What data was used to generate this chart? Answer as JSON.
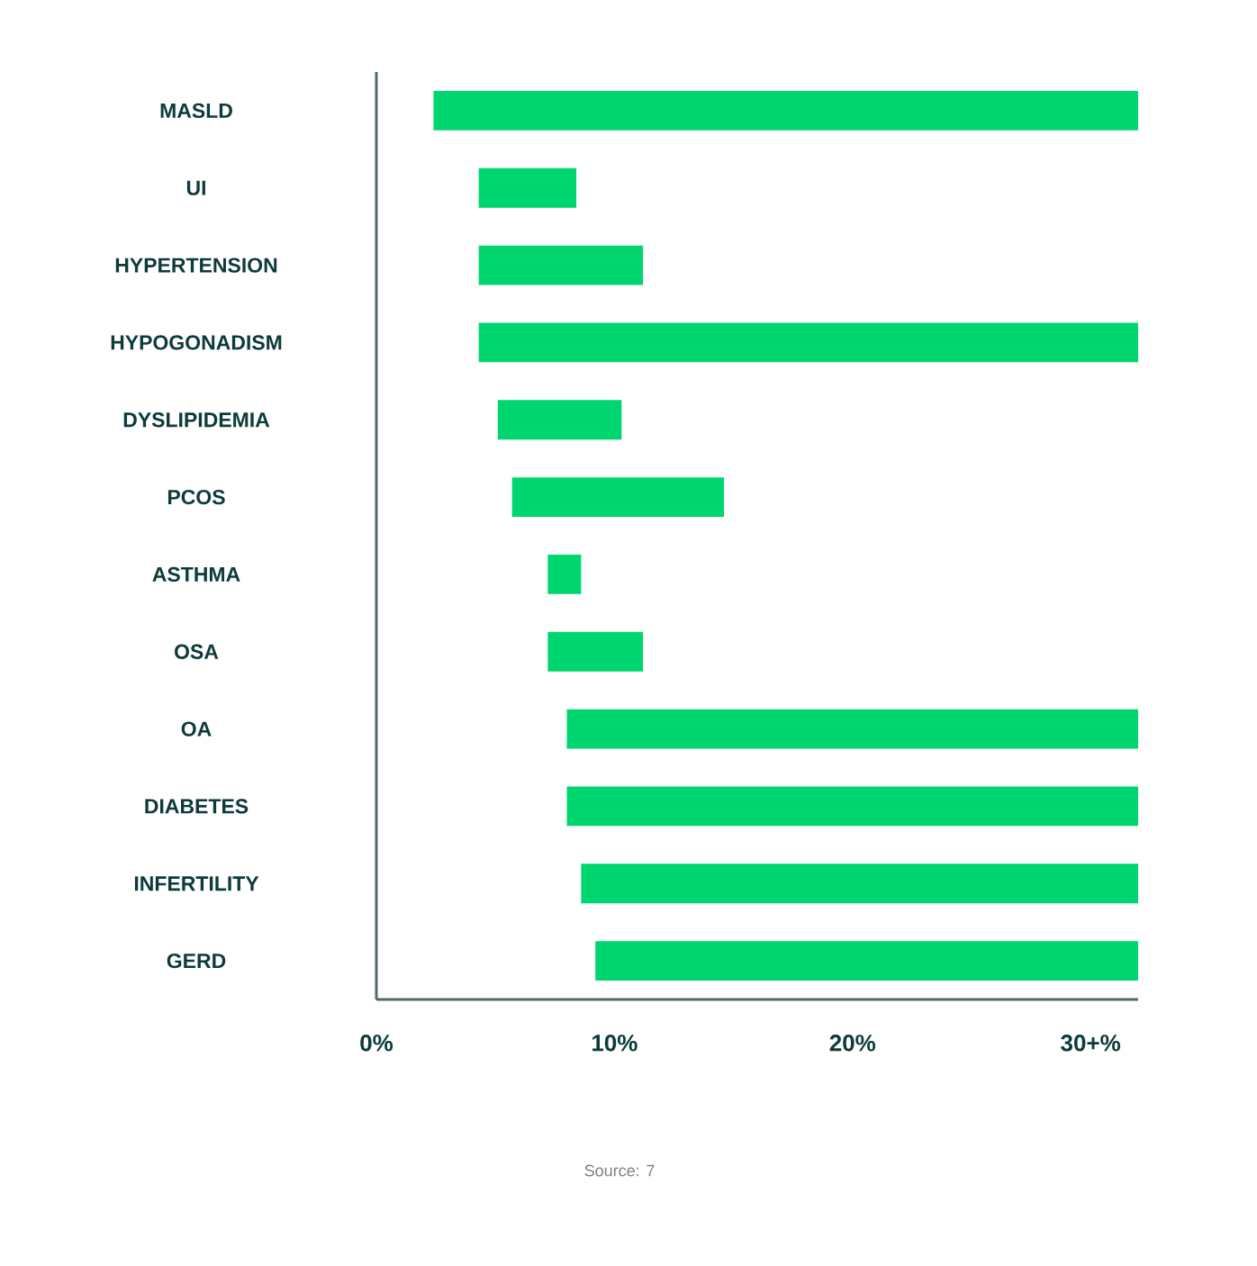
{
  "chart_data": {
    "type": "bar",
    "orientation": "horizontal",
    "categories": [
      "MASLD",
      "UI",
      "HYPERTENSION",
      "HYPOGONADISM",
      "DYSLIPIDEMIA",
      "PCOS",
      "ASTHMA",
      "OSA",
      "OA",
      "DIABETES",
      "INFERTILITY",
      "GERD"
    ],
    "base": [
      2.4,
      4.3,
      4.3,
      4.3,
      5.1,
      5.7,
      7.2,
      7.2,
      8.0,
      8.0,
      8.6,
      9.2
    ],
    "values": [
      29.6,
      4.1,
      6.9,
      27.7,
      5.2,
      8.9,
      1.4,
      4.0,
      24.0,
      24.0,
      23.4,
      22.8
    ],
    "color": "#00d66f",
    "xlim": [
      0,
      32
    ],
    "xticks": [
      {
        "value": 0,
        "label": "0%"
      },
      {
        "value": 10,
        "label": "10%"
      },
      {
        "value": 20,
        "label": "20%"
      },
      {
        "value": 30,
        "label": "30+%"
      }
    ],
    "annotations": [
      "Source: 7"
    ]
  }
}
